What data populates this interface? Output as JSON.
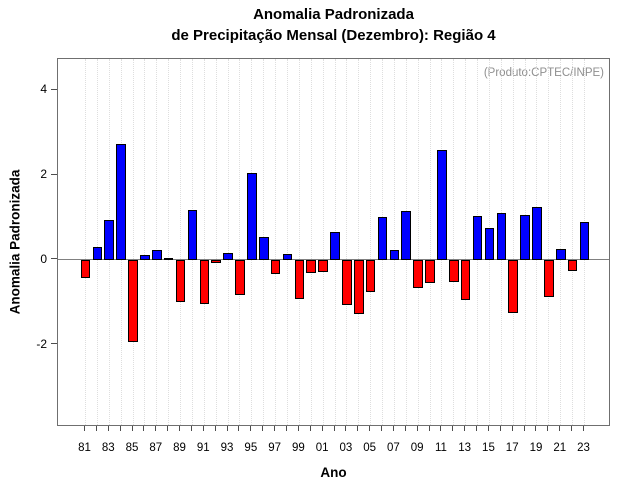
{
  "chart_data": {
    "type": "bar",
    "title": "Anomalia Padronizada",
    "subtitle": "de Precipitação Mensal (Dezembro): Região 4",
    "annotation": "(Produto:CPTEC/INPE)",
    "xlabel": "Ano",
    "ylabel": "Anomalia Padronizada",
    "ylim": [
      -3.93,
      4.73
    ],
    "yticks": [
      -2,
      0,
      2,
      4
    ],
    "x_label_every": 2,
    "grid": "vertical-dotted",
    "categories": [
      "81",
      "82",
      "83",
      "84",
      "85",
      "86",
      "87",
      "88",
      "89",
      "90",
      "91",
      "92",
      "93",
      "94",
      "95",
      "96",
      "97",
      "98",
      "99",
      "00",
      "01",
      "02",
      "03",
      "04",
      "05",
      "06",
      "07",
      "08",
      "09",
      "10",
      "11",
      "12",
      "13",
      "14",
      "15",
      "16",
      "17",
      "18",
      "19",
      "20",
      "21",
      "22",
      "23"
    ],
    "values": [
      -0.42,
      0.31,
      0.93,
      2.72,
      -1.92,
      0.12,
      0.24,
      0.05,
      -0.98,
      1.18,
      -1.04,
      -0.06,
      0.17,
      -0.82,
      2.04,
      0.55,
      -0.34,
      0.13,
      -0.91,
      -0.31,
      -0.29,
      0.66,
      -1.07,
      -1.28,
      -0.75,
      1.02,
      0.23,
      1.15,
      -0.67,
      -0.55,
      2.59,
      -0.51,
      -0.94,
      1.04,
      0.75,
      1.11,
      -1.24,
      1.06,
      1.25,
      -0.86,
      0.27,
      -0.27,
      0.9
    ],
    "colors": {
      "positive": "#0000ff",
      "negative": "#ff0000",
      "bar_border": "#000000",
      "frame": "#6f6f6f",
      "zero_line": "#808080",
      "gridline": "#dedede",
      "annotation_text": "#8f8f8f",
      "text": "#000000"
    }
  }
}
